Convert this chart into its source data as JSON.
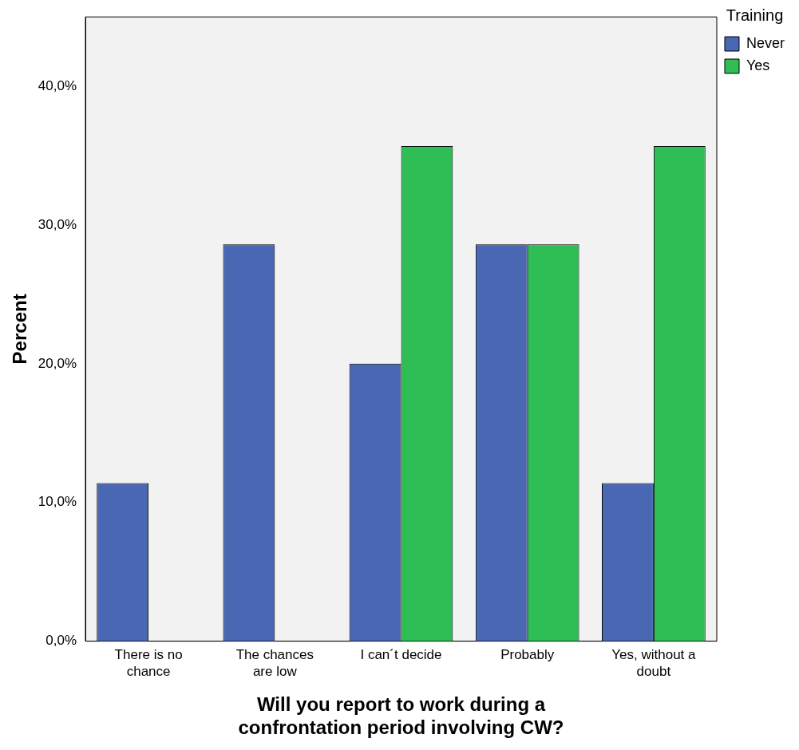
{
  "chart_data": {
    "type": "bar",
    "categories": [
      "There is no\nchance",
      "The chances\nare low",
      "I can´t decide",
      "Probably",
      "Yes, without a\ndoubt"
    ],
    "series": [
      {
        "name": "Never",
        "color": "#4a67b4",
        "values": [
          11.4,
          28.6,
          20.0,
          28.6,
          11.4
        ]
      },
      {
        "name": "Yes",
        "color": "#2fbd55",
        "values": [
          0,
          0,
          35.7,
          28.6,
          35.7
        ]
      }
    ],
    "xlabel": "Will you report to work during a\nconfrontation period involving CW?",
    "ylabel": "Percent",
    "legend_title": "Training",
    "legend": "top right",
    "ylim": [
      0,
      45
    ],
    "yticks": [
      {
        "value": 0,
        "label": "0,0%"
      },
      {
        "value": 10,
        "label": "10,0%"
      },
      {
        "value": 20,
        "label": "20,0%"
      },
      {
        "value": 30,
        "label": "30,0%"
      },
      {
        "value": 40,
        "label": "40,0%"
      }
    ],
    "grid": false
  }
}
